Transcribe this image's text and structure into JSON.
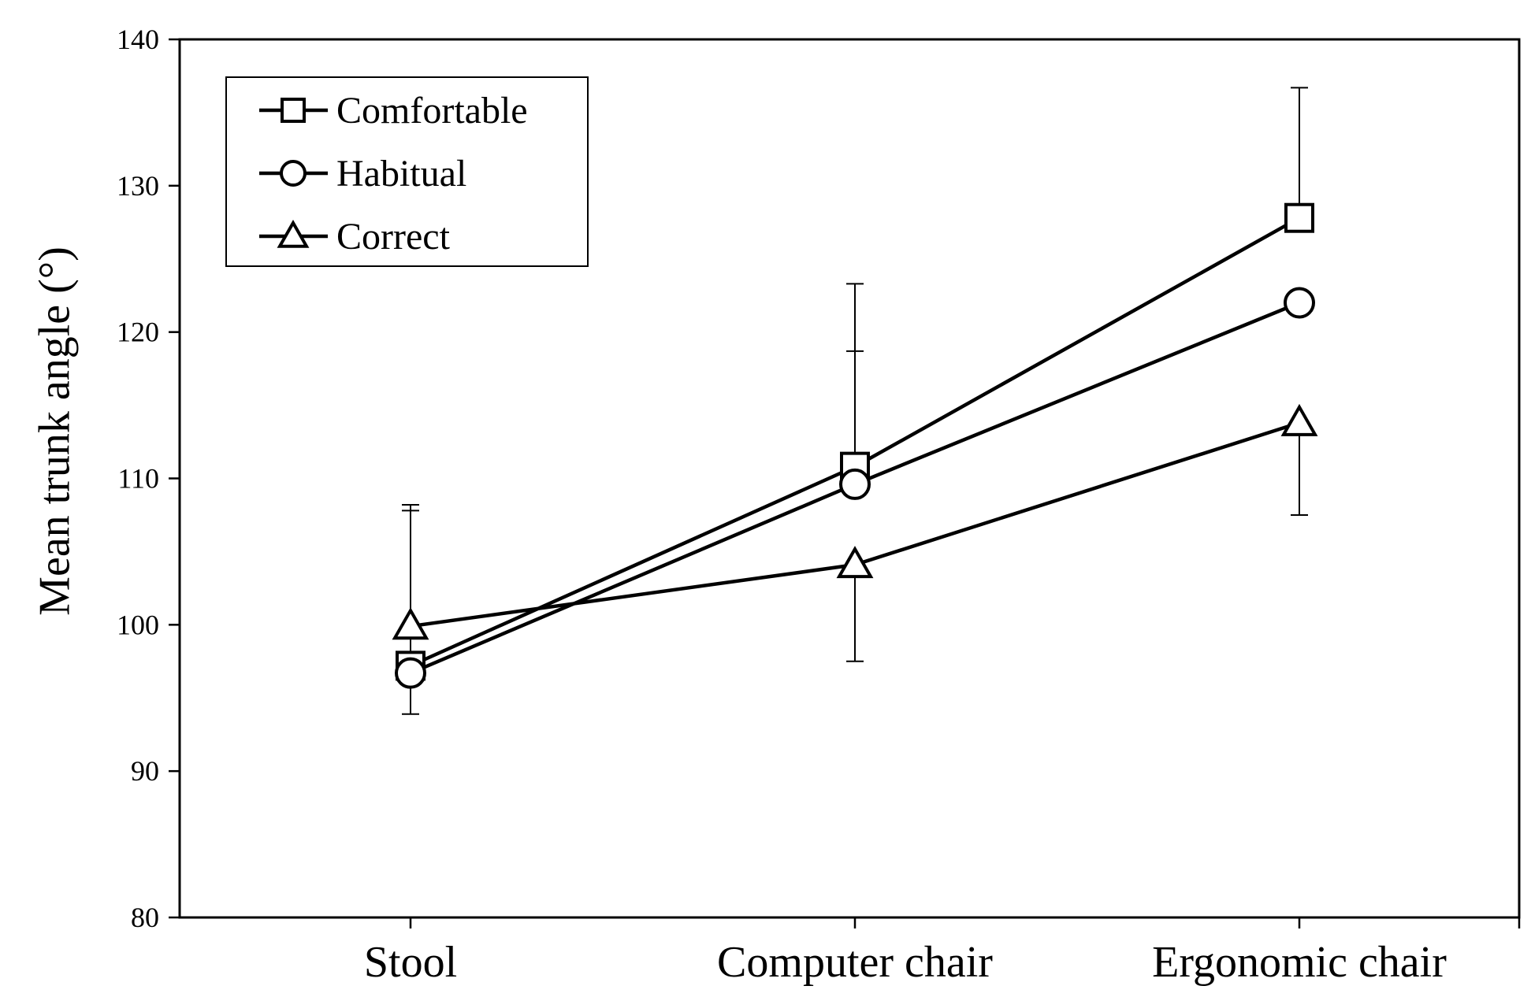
{
  "chart_data": {
    "type": "line",
    "title": "",
    "xlabel": "",
    "ylabel": "Mean trunk angle (°)",
    "categories": [
      "Stool",
      "Computer chair",
      "Ergonomic chair"
    ],
    "ylim": [
      80,
      140
    ],
    "yticks": [
      80,
      90,
      100,
      110,
      120,
      130,
      140
    ],
    "grid": false,
    "legend_position": "top-left",
    "series": [
      {
        "name": "Comfortable",
        "marker": "square",
        "values": [
          97.2,
          110.8,
          127.8
        ],
        "error_upper": [
          108.2,
          123.3,
          136.7
        ],
        "error_lower": [
          null,
          null,
          null
        ]
      },
      {
        "name": "Habitual",
        "marker": "circle",
        "values": [
          96.7,
          109.6,
          122.0
        ],
        "error_upper": [
          107.8,
          118.7,
          null
        ],
        "error_lower": [
          93.9,
          null,
          null
        ]
      },
      {
        "name": "Correct",
        "marker": "triangle",
        "values": [
          99.9,
          104.1,
          113.8
        ],
        "error_upper": [
          null,
          null,
          null
        ],
        "error_lower": [
          null,
          97.5,
          107.5
        ]
      }
    ],
    "colors": {
      "line": "#000000",
      "marker_fill": "#ffffff",
      "background": "#ffffff"
    }
  }
}
